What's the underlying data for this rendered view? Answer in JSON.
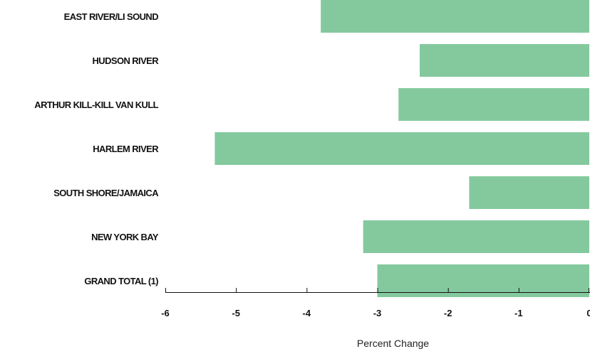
{
  "chart_data": {
    "type": "bar",
    "orientation": "horizontal",
    "categories": [
      "EAST RIVER/LI SOUND",
      "HUDSON RIVER",
      "ARTHUR KILL-KILL VAN KULL",
      "HARLEM RIVER",
      "SOUTH SHORE/JAMAICA",
      "NEW YORK BAY",
      "GRAND TOTAL (1)"
    ],
    "values": [
      -3.8,
      -2.4,
      -2.7,
      -5.3,
      -1.7,
      -3.2,
      -3.0
    ],
    "xlabel": "Percent Change",
    "ylabel": "",
    "xlim": [
      -6,
      0
    ],
    "xticks": [
      "-6",
      "-5",
      "-4",
      "-3",
      "-2",
      "-1",
      "0"
    ],
    "bar_color": "#84c99e",
    "grid": false,
    "legend": "none"
  }
}
